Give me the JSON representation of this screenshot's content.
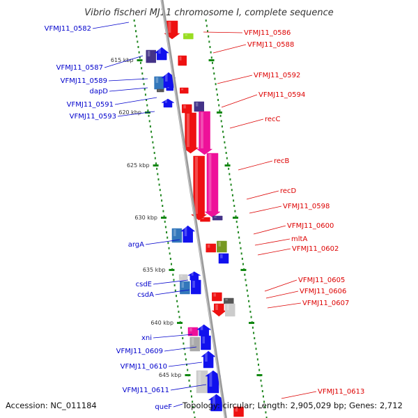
{
  "title": "Vibrio fischeri MJ11 chromosome I, complete sequence",
  "footer": {
    "accession": "Accession: NC_011184",
    "topology": "Topology: circular; Length: 2,905,029 bp; Genes: 2,712"
  },
  "colors": {
    "backbone": "#888888",
    "ticks": "#118811",
    "left_label": "#0000cc",
    "right_label": "#dd0000"
  },
  "scale_ticks": [
    {
      "label": "615 kbp",
      "pos": 615
    },
    {
      "label": "620 kbp",
      "pos": 620
    },
    {
      "label": "625 kbp",
      "pos": 625
    },
    {
      "label": "630 kbp",
      "pos": 630
    },
    {
      "label": "635 kbp",
      "pos": 635
    },
    {
      "label": "640 kbp",
      "pos": 640
    },
    {
      "label": "645 kbp",
      "pos": 645
    }
  ],
  "left_labels": [
    {
      "label": "VFMJ11_0582"
    },
    {
      "label": "VFMJ11_0587"
    },
    {
      "label": "VFMJ11_0589"
    },
    {
      "label": "dapD"
    },
    {
      "label": "VFMJ11_0591"
    },
    {
      "label": "VFMJ11_0593"
    },
    {
      "label": "argA"
    },
    {
      "label": "csdE"
    },
    {
      "label": "csdA"
    },
    {
      "label": "xni"
    },
    {
      "label": "VFMJ11_0609"
    },
    {
      "label": "VFMJ11_0610"
    },
    {
      "label": "VFMJ11_0611"
    },
    {
      "label": "queF"
    }
  ],
  "right_labels": [
    {
      "label": "VFMJ11_0586"
    },
    {
      "label": "VFMJ11_0588"
    },
    {
      "label": "VFMJ11_0592"
    },
    {
      "label": "VFMJ11_0594"
    },
    {
      "label": "recC"
    },
    {
      "label": "recB"
    },
    {
      "label": "recD"
    },
    {
      "label": "VFMJ11_0598"
    },
    {
      "label": "VFMJ11_0600"
    },
    {
      "label": "mltA"
    },
    {
      "label": "VFMJ11_0602"
    },
    {
      "label": "VFMJ11_0605"
    },
    {
      "label": "VFMJ11_0606"
    },
    {
      "label": "VFMJ11_0607"
    },
    {
      "label": "VFMJ11_0613"
    }
  ]
}
